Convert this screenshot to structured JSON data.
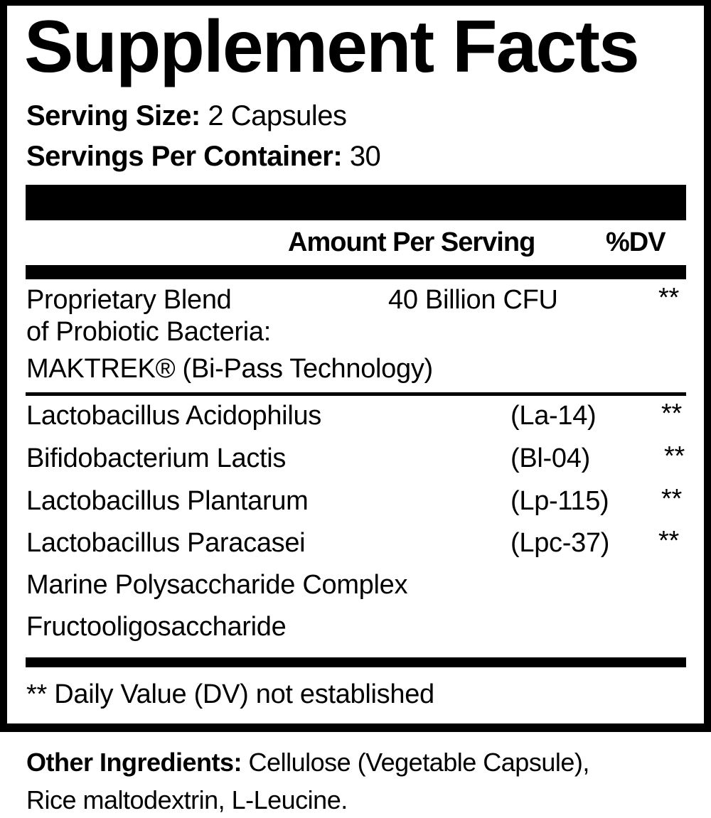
{
  "title": "Supplement Facts",
  "serving_size": {
    "label": "Serving Size:",
    "value": "2 Capsules"
  },
  "servings_per_container": {
    "label": "Servings Per Container:",
    "value": "30"
  },
  "header": {
    "amount": "Amount Per Serving",
    "dv": "%DV"
  },
  "blend": {
    "lines": [
      "Proprietary Blend",
      "of Probiotic Bacteria:",
      "MAKTREK® (Bi-Pass Technology)"
    ],
    "amount": "40 Billion CFU",
    "dv": "**"
  },
  "ingredients": [
    {
      "name": "Lactobacillus Acidophilus",
      "strain": "(La-14)",
      "dv": "**"
    },
    {
      "name": "Bifidobacterium Lactis",
      "strain": "(Bl-04)",
      "dv": "**"
    },
    {
      "name": "Lactobacillus Plantarum",
      "strain": "(Lp-115)",
      "dv": "**"
    },
    {
      "name": "Lactobacillus Paracasei",
      "strain": "(Lpc-37)",
      "dv": "**"
    },
    {
      "name": "Marine Polysaccharide Complex",
      "strain": "",
      "dv": ""
    },
    {
      "name": "Fructooligosaccharide",
      "strain": "",
      "dv": ""
    }
  ],
  "footnote": "** Daily Value (DV) not established",
  "other_ingredients": {
    "label": "Other Ingredients:",
    "line1": "Cellulose (Vegetable Capsule),",
    "line2": "Rice maltodextrin, L-Leucine."
  }
}
